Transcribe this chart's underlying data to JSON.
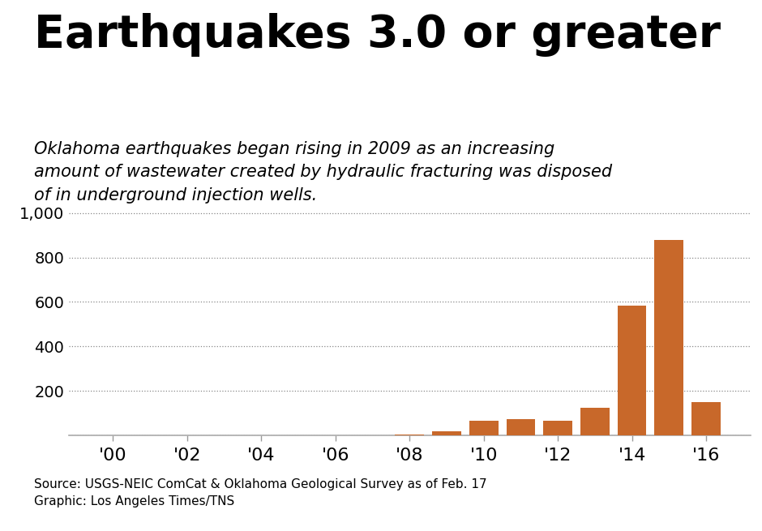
{
  "title": "Earthquakes 3.0 or greater",
  "subtitle": "Oklahoma earthquakes began rising in 2009 as an increasing\namount of wastewater created by hydraulic fracturing was disposed\nof in underground injection wells.",
  "years": [
    2000,
    2001,
    2002,
    2003,
    2004,
    2005,
    2006,
    2007,
    2008,
    2009,
    2010,
    2011,
    2012,
    2013,
    2014,
    2015,
    2016
  ],
  "values": [
    1,
    1,
    1,
    1,
    1,
    1,
    1,
    1,
    3,
    20,
    65,
    75,
    65,
    125,
    585,
    880,
    150
  ],
  "bar_color": "#C8682A",
  "bg_color": "#FFFFFF",
  "yticks": [
    200,
    400,
    600,
    800,
    1000
  ],
  "ylim": [
    0,
    1050
  ],
  "xtick_years": [
    2000,
    2002,
    2004,
    2006,
    2008,
    2010,
    2012,
    2014,
    2016
  ],
  "xtick_labels": [
    "'00",
    "'02",
    "'04",
    "'06",
    "'08",
    "'10",
    "'12",
    "'14",
    "'16"
  ],
  "source_text": "Source: USGS-NEIC ComCat & Oklahoma Geological Survey as of Feb. 17\nGraphic: Los Angeles Times/TNS",
  "title_fontsize": 40,
  "subtitle_fontsize": 15,
  "axis_fontsize": 14,
  "source_fontsize": 11,
  "ytick_1000_label": "1,000"
}
